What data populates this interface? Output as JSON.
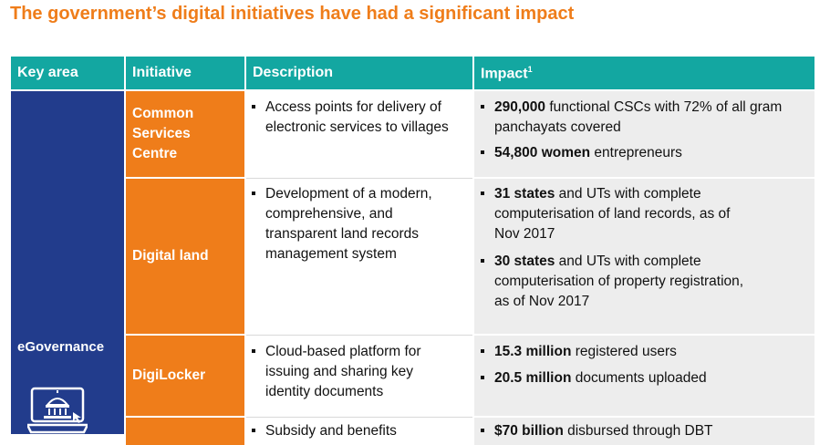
{
  "title": "The government’s digital initiatives have had a significant impact",
  "headers": {
    "key_area": "Key area",
    "initiative": "Initiative",
    "description": "Description",
    "impact": "Impact",
    "impact_sup": "1"
  },
  "key_area": {
    "label": "eGovernance",
    "icon": "laptop-government-building-icon"
  },
  "rows": [
    {
      "initiative": [
        "Common",
        "Services",
        "Centre"
      ],
      "description": [
        "Access points for delivery of",
        "electronic services to villages"
      ],
      "impact": [
        {
          "bold": "290,000",
          "rest": " functional CSCs with 72% of all gram",
          "lines": [
            "panchayats covered"
          ]
        },
        {
          "bold": "54,800 women",
          "rest": " entrepreneurs",
          "lines": []
        }
      ]
    },
    {
      "initiative": [
        "Digital land"
      ],
      "description": [
        "Development of a modern,",
        "comprehensive, and",
        "transparent land records",
        "management system"
      ],
      "impact": [
        {
          "bold": "31 states",
          "rest": " and UTs with complete",
          "lines": [
            "computerisation of land records, as of",
            "Nov 2017"
          ]
        },
        {
          "bold": "30 states",
          "rest": " and UTs with complete",
          "lines": [
            "computerisation of property registration,",
            "as of Nov 2017"
          ]
        }
      ]
    },
    {
      "initiative": [
        "DigiLocker"
      ],
      "description": [
        "Cloud-based platform for",
        "issuing and sharing key",
        "identity documents"
      ],
      "impact": [
        {
          "bold": "15.3 million",
          "rest": " registered users",
          "lines": []
        },
        {
          "bold": "20.5 million",
          "rest": " documents uploaded",
          "lines": []
        }
      ]
    },
    {
      "initiative": [
        ""
      ],
      "description": [
        "Subsidy and benefits"
      ],
      "impact": [
        {
          "bold": "$70 billion",
          "rest": " disbursed through DBT",
          "lines": []
        }
      ]
    }
  ]
}
